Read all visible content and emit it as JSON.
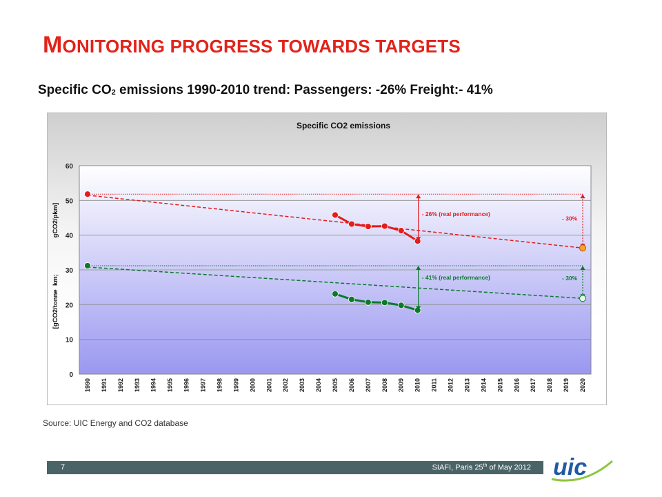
{
  "slide": {
    "title_first": "M",
    "title_rest": "onitoring progress towards targets",
    "subtitle_pre": "Specific CO",
    "subtitle_sub": "2",
    "subtitle_post": " emissions 1990-2010 trend: Passengers: -26%   Freight:- 41%",
    "source": "Source: UIC Energy and CO2 database",
    "page_number": "7",
    "footer_pre": "SIAFI,  Paris 25",
    "footer_sup": "th",
    "footer_post": " of May  2012",
    "logo_text": "uic",
    "colors": {
      "title": "#e2231a",
      "passenger": "#e31c1c",
      "freight": "#0a7a2a",
      "footer_bar": "#4a6366",
      "logo": "#1f5aa6"
    }
  },
  "chart_data": {
    "type": "line",
    "title": "Specific CO2 emissions",
    "ylabel": "[gCO2/tonne  km;                    gCO2/pkm]",
    "ylim": [
      0,
      60
    ],
    "yticks": [
      0,
      10,
      20,
      30,
      40,
      50,
      60
    ],
    "categories": [
      "1990",
      "1991",
      "1992",
      "1993",
      "1994",
      "1995",
      "1996",
      "1997",
      "1998",
      "1999",
      "2000",
      "2001",
      "2002",
      "2003",
      "2004",
      "2005",
      "2006",
      "2007",
      "2008",
      "2009",
      "2010",
      "2011",
      "2012",
      "2013",
      "2014",
      "2015",
      "2016",
      "2017",
      "2018",
      "2019",
      "2020"
    ],
    "series": [
      {
        "name": "Passengers",
        "color": "#e31c1c",
        "points": [
          [
            1990,
            51.8
          ],
          [
            2005,
            45.8
          ],
          [
            2006,
            43.2
          ],
          [
            2007,
            42.5
          ],
          [
            2008,
            42.6
          ],
          [
            2009,
            41.3
          ],
          [
            2010,
            38.3
          ]
        ]
      },
      {
        "name": "Freight",
        "color": "#0a7a2a",
        "points": [
          [
            1990,
            31.2
          ],
          [
            2005,
            23.1
          ],
          [
            2006,
            21.5
          ],
          [
            2007,
            20.7
          ],
          [
            2008,
            20.6
          ],
          [
            2009,
            19.8
          ],
          [
            2010,
            18.4
          ]
        ]
      }
    ],
    "trend_lines": [
      {
        "name": "Passenger trend",
        "color": "#e31c1c",
        "from": [
          1990,
          51.5
        ],
        "to": [
          2020,
          36.3
        ]
      },
      {
        "name": "Freight trend",
        "color": "#0a7a2a",
        "from": [
          1990,
          30.8
        ],
        "to": [
          2020,
          21.8
        ]
      }
    ],
    "reference_lines": [
      {
        "name": "Passenger 1990 level",
        "color": "#e31c1c",
        "y": 51.8
      },
      {
        "name": "Freight 1990 level",
        "color": "#0a7a2a",
        "y": 31.2
      }
    ],
    "targets": [
      {
        "name": "Passenger target 2020",
        "x": 2020,
        "y": 36.3,
        "fill": "#f5a623",
        "stroke": "#c05000"
      },
      {
        "name": "Freight target 2020",
        "x": 2020,
        "y": 21.8,
        "fill": "#e8f8e8",
        "stroke": "#0a7a2a"
      }
    ],
    "annotations": [
      {
        "text": "- 26% (real performance)",
        "color": "#e31c1c",
        "arrow_x": 2010,
        "y_top": 51.8,
        "y_bottom": 38.3,
        "text_y": 45.5
      },
      {
        "text": "- 41% (real performance)",
        "color": "#0a7a2a",
        "arrow_x": 2010,
        "y_top": 31.2,
        "y_bottom": 18.4,
        "text_y": 27.2
      },
      {
        "text": "- 30%",
        "color": "#e31c1c",
        "arrow_x": 2020,
        "y_top": 51.8,
        "y_bottom": 36.3,
        "text_y": 44.2
      },
      {
        "text": "- 30%",
        "color": "#0a7a2a",
        "arrow_x": 2020,
        "y_top": 31.2,
        "y_bottom": 21.8,
        "text_y": 27.0
      }
    ]
  }
}
